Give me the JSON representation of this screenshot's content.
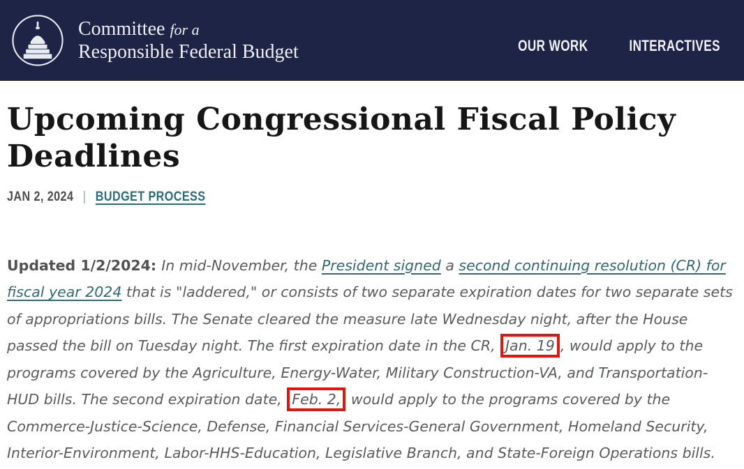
{
  "header": {
    "background_color": "#1d2445",
    "logo": {
      "icon": "capitol-dome-icon",
      "line1": "Committee",
      "line1_italic": "for a",
      "line2": "Responsible Federal Budget"
    },
    "nav": [
      {
        "label": "OUR WORK"
      },
      {
        "label": "INTERACTIVES"
      }
    ]
  },
  "article": {
    "title": "Upcoming Congressional Fiscal Policy Deadlines",
    "date": "JAN 2, 2024",
    "separator": "|",
    "category_link": "BUDGET PROCESS",
    "paragraph_segments": [
      {
        "text": "Updated 1/2/2024: ",
        "style": "bold"
      },
      {
        "text": "In mid-November, the ",
        "style": "italic"
      },
      {
        "text": "President signed",
        "style": "link"
      },
      {
        "text": " a ",
        "style": "italic"
      },
      {
        "text": "second continuing resolution (CR) for fiscal year 2024",
        "style": "link"
      },
      {
        "text": " that is \"laddered,\" or consists of two separate expiration dates for two separate sets of appropriations bills. The Senate cleared the measure late Wednesday night, after the House passed the bill on Tuesday night. The first expiration date in the CR, ",
        "style": "italic"
      },
      {
        "text": "Jan. 19",
        "style": "boxed"
      },
      {
        "text": ", would apply to the programs covered by the Agriculture, Energy-Water, Military Construction-VA, and Transportation-HUD bills. The second expiration date, ",
        "style": "italic"
      },
      {
        "text": "Feb. 2,",
        "style": "boxed"
      },
      {
        "text": " would apply to the programs covered by the Commerce-Justice-Science, Defense, Financial Services-General Government, Homeland Security, Interior-Environment, Labor-HHS-Education, Legislative Branch, and State-Foreign Operations bills.",
        "style": "italic"
      }
    ]
  },
  "colors": {
    "header_navy": "#1d2445",
    "annotation_red": "#e8130c",
    "link_teal": "#2e6975",
    "category_teal": "#266d7c",
    "body_gray": "#595b5d",
    "heading_black": "#161616"
  }
}
